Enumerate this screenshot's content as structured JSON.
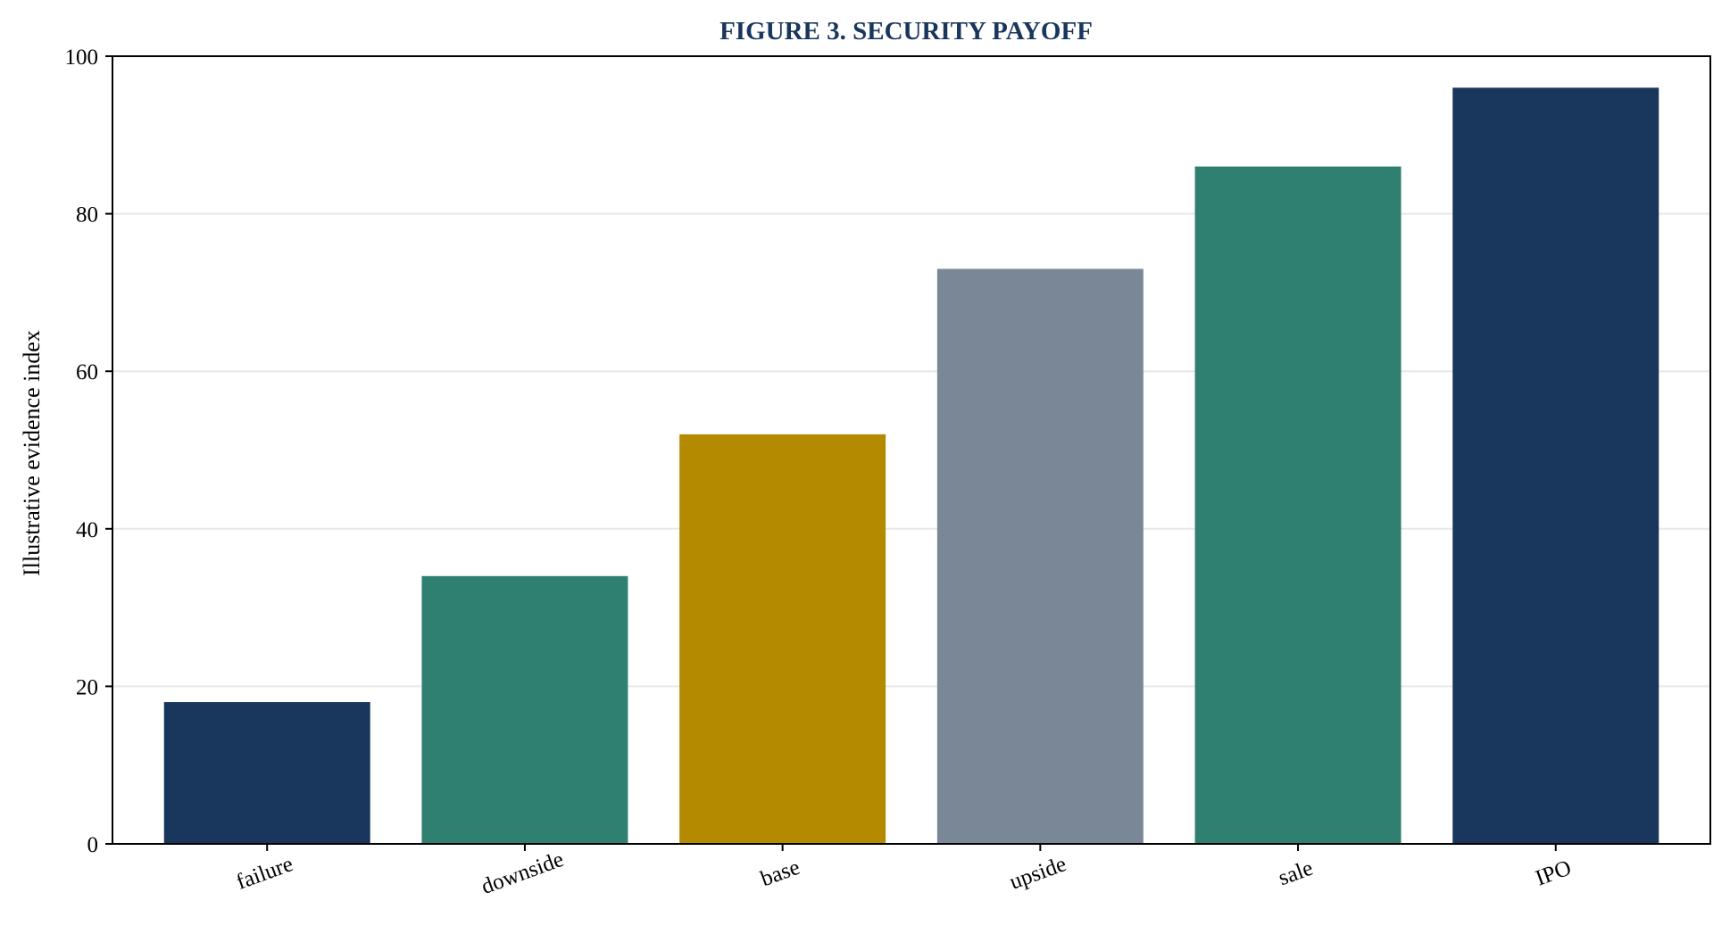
{
  "chart_data": {
    "type": "bar",
    "title": "FIGURE 3. SECURITY PAYOFF",
    "xlabel": "",
    "ylabel": "Illustrative evidence index",
    "categories": [
      "failure",
      "downside",
      "base",
      "upside",
      "sale",
      "IPO"
    ],
    "values": [
      18,
      34,
      52,
      73,
      86,
      96
    ],
    "bar_colors": [
      "#19365d",
      "#2f8070",
      "#b38a00",
      "#7a8796",
      "#2f8070",
      "#19365d"
    ],
    "ylim": [
      0,
      100
    ],
    "yticks": [
      0,
      20,
      40,
      60,
      80,
      100
    ],
    "grid": "horizontal",
    "legend": "none",
    "title_color": "#19365d"
  }
}
